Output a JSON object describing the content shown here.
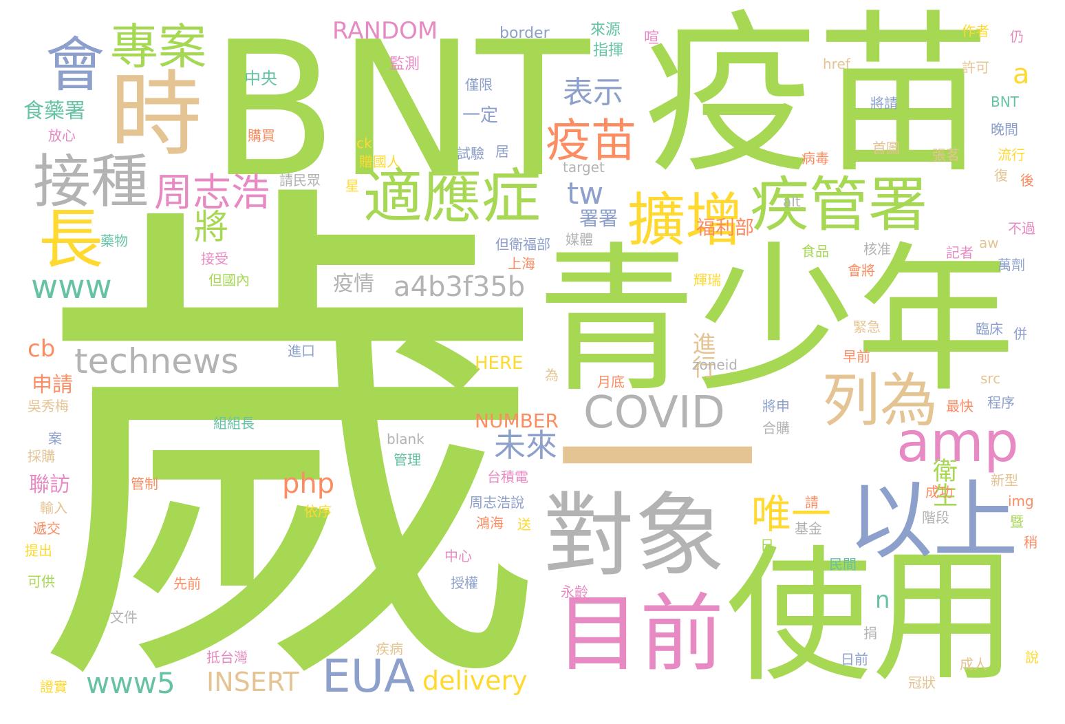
{
  "colors": {
    "green": "#a6d854",
    "gray": "#b3b3b3",
    "tan": "#e5c494",
    "blue": "#8da0cb",
    "pink": "#e78ac3",
    "orange": "#fc8d62",
    "yellow": "#ffd92f",
    "teal": "#66c2a5"
  },
  "words": [
    "歲",
    "BNT",
    "疫苗",
    "青少年",
    "使用",
    "對象",
    "以上",
    "一",
    "目前",
    "時",
    "接種",
    "擴增",
    "疾管署",
    "適應症",
    "會",
    "專案",
    "列為",
    "長",
    "周志浩",
    "疫苗",
    "amp",
    "COVID",
    "technews",
    "EUA",
    "表示",
    "將",
    "a4b3f35b",
    "www",
    "www5",
    "tw",
    "唯一",
    "未來",
    "delivery",
    "INSERT",
    "RANDOM",
    "php",
    "NUMBER",
    "衛生",
    "cb",
    "n",
    "a",
    "進行",
    "疫情",
    "福利部",
    "署署",
    "聯訪",
    "申請",
    "食藥署",
    "HERE",
    "中央",
    "border",
    "來源",
    "指揮",
    "監測",
    "作者",
    "仍",
    "href",
    "許可",
    "BNT",
    "晚間",
    "僅限",
    "一定",
    "試驗",
    "居",
    "將請",
    "首圖",
    "張茗",
    "流行",
    "病毒",
    "後",
    "復",
    "購買",
    "放心",
    "贈國人",
    "星",
    "ck",
    "請民眾",
    "target",
    "alt",
    "不過",
    "aw",
    "藥物",
    "接受",
    "但國內",
    "但衛福部",
    "媒體",
    "上海",
    "食品",
    "核准",
    "記者",
    "會將",
    "萬劑",
    "輝瑞",
    "緊急",
    "臨床",
    "併",
    "早前",
    "進口",
    "zoneid",
    "為",
    "月底",
    "吳秀梅",
    "組組長",
    "將申",
    "合購",
    "最快",
    "程序",
    "src",
    "案",
    "採購",
    "blank",
    "管理",
    "台積電",
    "管制",
    "輸入",
    "遞交",
    "提出",
    "依序",
    "周志浩說",
    "鴻海",
    "送",
    "請",
    "成功",
    "基金",
    "階段",
    "新型",
    "img",
    "暨",
    "稍",
    "日",
    "中心",
    "民間",
    "授權",
    "可供",
    "先前",
    "永齡",
    "文件",
    "捐",
    "抵台灣",
    "疾病",
    "日前",
    "成人",
    "說",
    "冠狀",
    "證實",
    "喧"
  ]
}
